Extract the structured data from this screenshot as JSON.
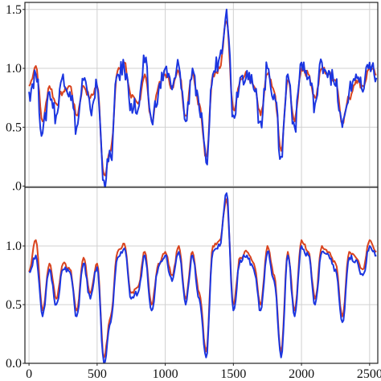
{
  "colors": {
    "series_red": "#d9441f",
    "series_blue": "#1c36e0",
    "grid": "#d0d0d0",
    "axis": "#222222"
  },
  "chart_data": [
    {
      "type": "line",
      "panel": "top",
      "grid": true,
      "xlim": [
        -30,
        2560
      ],
      "ylim": [
        -0.01,
        1.56
      ],
      "x_ticks": [
        0,
        500,
        1000,
        1500,
        2000,
        2500
      ],
      "y_ticks": [
        0.0,
        0.5,
        1.0,
        1.5
      ],
      "y_tick_labels": [
        ".0",
        "0.5",
        "1.0",
        "1.5"
      ],
      "x_step": 50,
      "series": [
        {
          "color": "#d9441f",
          "values": [
            0.85,
            1.02,
            0.55,
            0.85,
            0.7,
            0.8,
            0.85,
            0.6,
            0.85,
            0.75,
            0.85,
            0.1,
            0.3,
            0.98,
            1.05,
            0.75,
            0.7,
            0.95,
            0.55,
            0.85,
            0.95,
            0.85,
            0.97,
            0.6,
            0.96,
            0.7,
            0.25,
            0.95,
            1.0,
            1.4,
            0.65,
            0.9,
            0.95,
            0.85,
            0.6,
            0.95,
            0.8,
            0.3,
            0.9,
            0.55,
            1.0,
            0.95,
            0.75,
            1.0,
            0.95,
            0.9,
            0.55,
            0.75,
            0.9,
            0.85,
            1.0,
            0.95
          ]
        },
        {
          "color": "#1c36e0",
          "values": [
            0.8,
            0.95,
            0.45,
            0.8,
            0.6,
            0.95,
            0.8,
            0.5,
            0.9,
            0.65,
            0.85,
            0.05,
            0.25,
            0.95,
            1.0,
            0.7,
            0.65,
            1.05,
            0.55,
            0.8,
            1.0,
            0.82,
            1.02,
            0.55,
            1.0,
            0.65,
            0.2,
            0.95,
            1.1,
            1.5,
            0.6,
            0.92,
            0.98,
            0.82,
            0.55,
            1.0,
            0.78,
            0.25,
            0.95,
            0.5,
            1.05,
            0.92,
            0.7,
            1.05,
            0.98,
            0.85,
            0.5,
            0.8,
            0.95,
            0.8,
            1.05,
            0.92
          ]
        }
      ]
    },
    {
      "type": "line",
      "panel": "bottom",
      "grid": true,
      "xlim": [
        -30,
        2560
      ],
      "ylim": [
        0.0,
        1.5
      ],
      "x_ticks": [
        0,
        500,
        1000,
        1500,
        2000,
        2500
      ],
      "x_tick_labels": [
        "0",
        "500",
        "1000",
        "1500",
        "2000",
        "2500"
      ],
      "y_ticks": [
        0.0,
        0.5,
        1.0
      ],
      "y_tick_labels": [
        "0.0",
        "0.5",
        "1.0"
      ],
      "x_step": 50,
      "series": [
        {
          "color": "#d9441f",
          "values": [
            0.78,
            1.05,
            0.45,
            0.85,
            0.55,
            0.85,
            0.8,
            0.45,
            0.9,
            0.6,
            0.85,
            0.05,
            0.4,
            0.95,
            1.02,
            0.6,
            0.65,
            0.95,
            0.5,
            0.85,
            0.95,
            0.75,
            1.0,
            0.55,
            0.95,
            0.6,
            0.1,
            1.0,
            1.05,
            1.4,
            0.5,
            0.9,
            0.95,
            0.85,
            0.5,
            1.0,
            0.75,
            0.1,
            0.95,
            0.45,
            1.05,
            0.95,
            0.55,
            1.0,
            0.95,
            0.85,
            0.4,
            0.95,
            0.9,
            0.8,
            1.05,
            0.95
          ]
        },
        {
          "color": "#1c36e0",
          "values": [
            0.78,
            0.92,
            0.4,
            0.8,
            0.5,
            0.8,
            0.78,
            0.4,
            0.85,
            0.55,
            0.82,
            0.0,
            0.35,
            0.9,
            0.98,
            0.55,
            0.6,
            0.92,
            0.45,
            0.82,
            0.92,
            0.7,
            0.95,
            0.5,
            0.92,
            0.55,
            0.05,
            0.95,
            1.0,
            1.45,
            0.45,
            0.88,
            0.92,
            0.8,
            0.45,
            0.95,
            0.7,
            0.05,
            0.92,
            0.4,
            1.0,
            0.92,
            0.5,
            0.95,
            0.92,
            0.8,
            0.35,
            0.9,
            0.88,
            0.75,
            1.0,
            0.92
          ]
        }
      ]
    }
  ]
}
